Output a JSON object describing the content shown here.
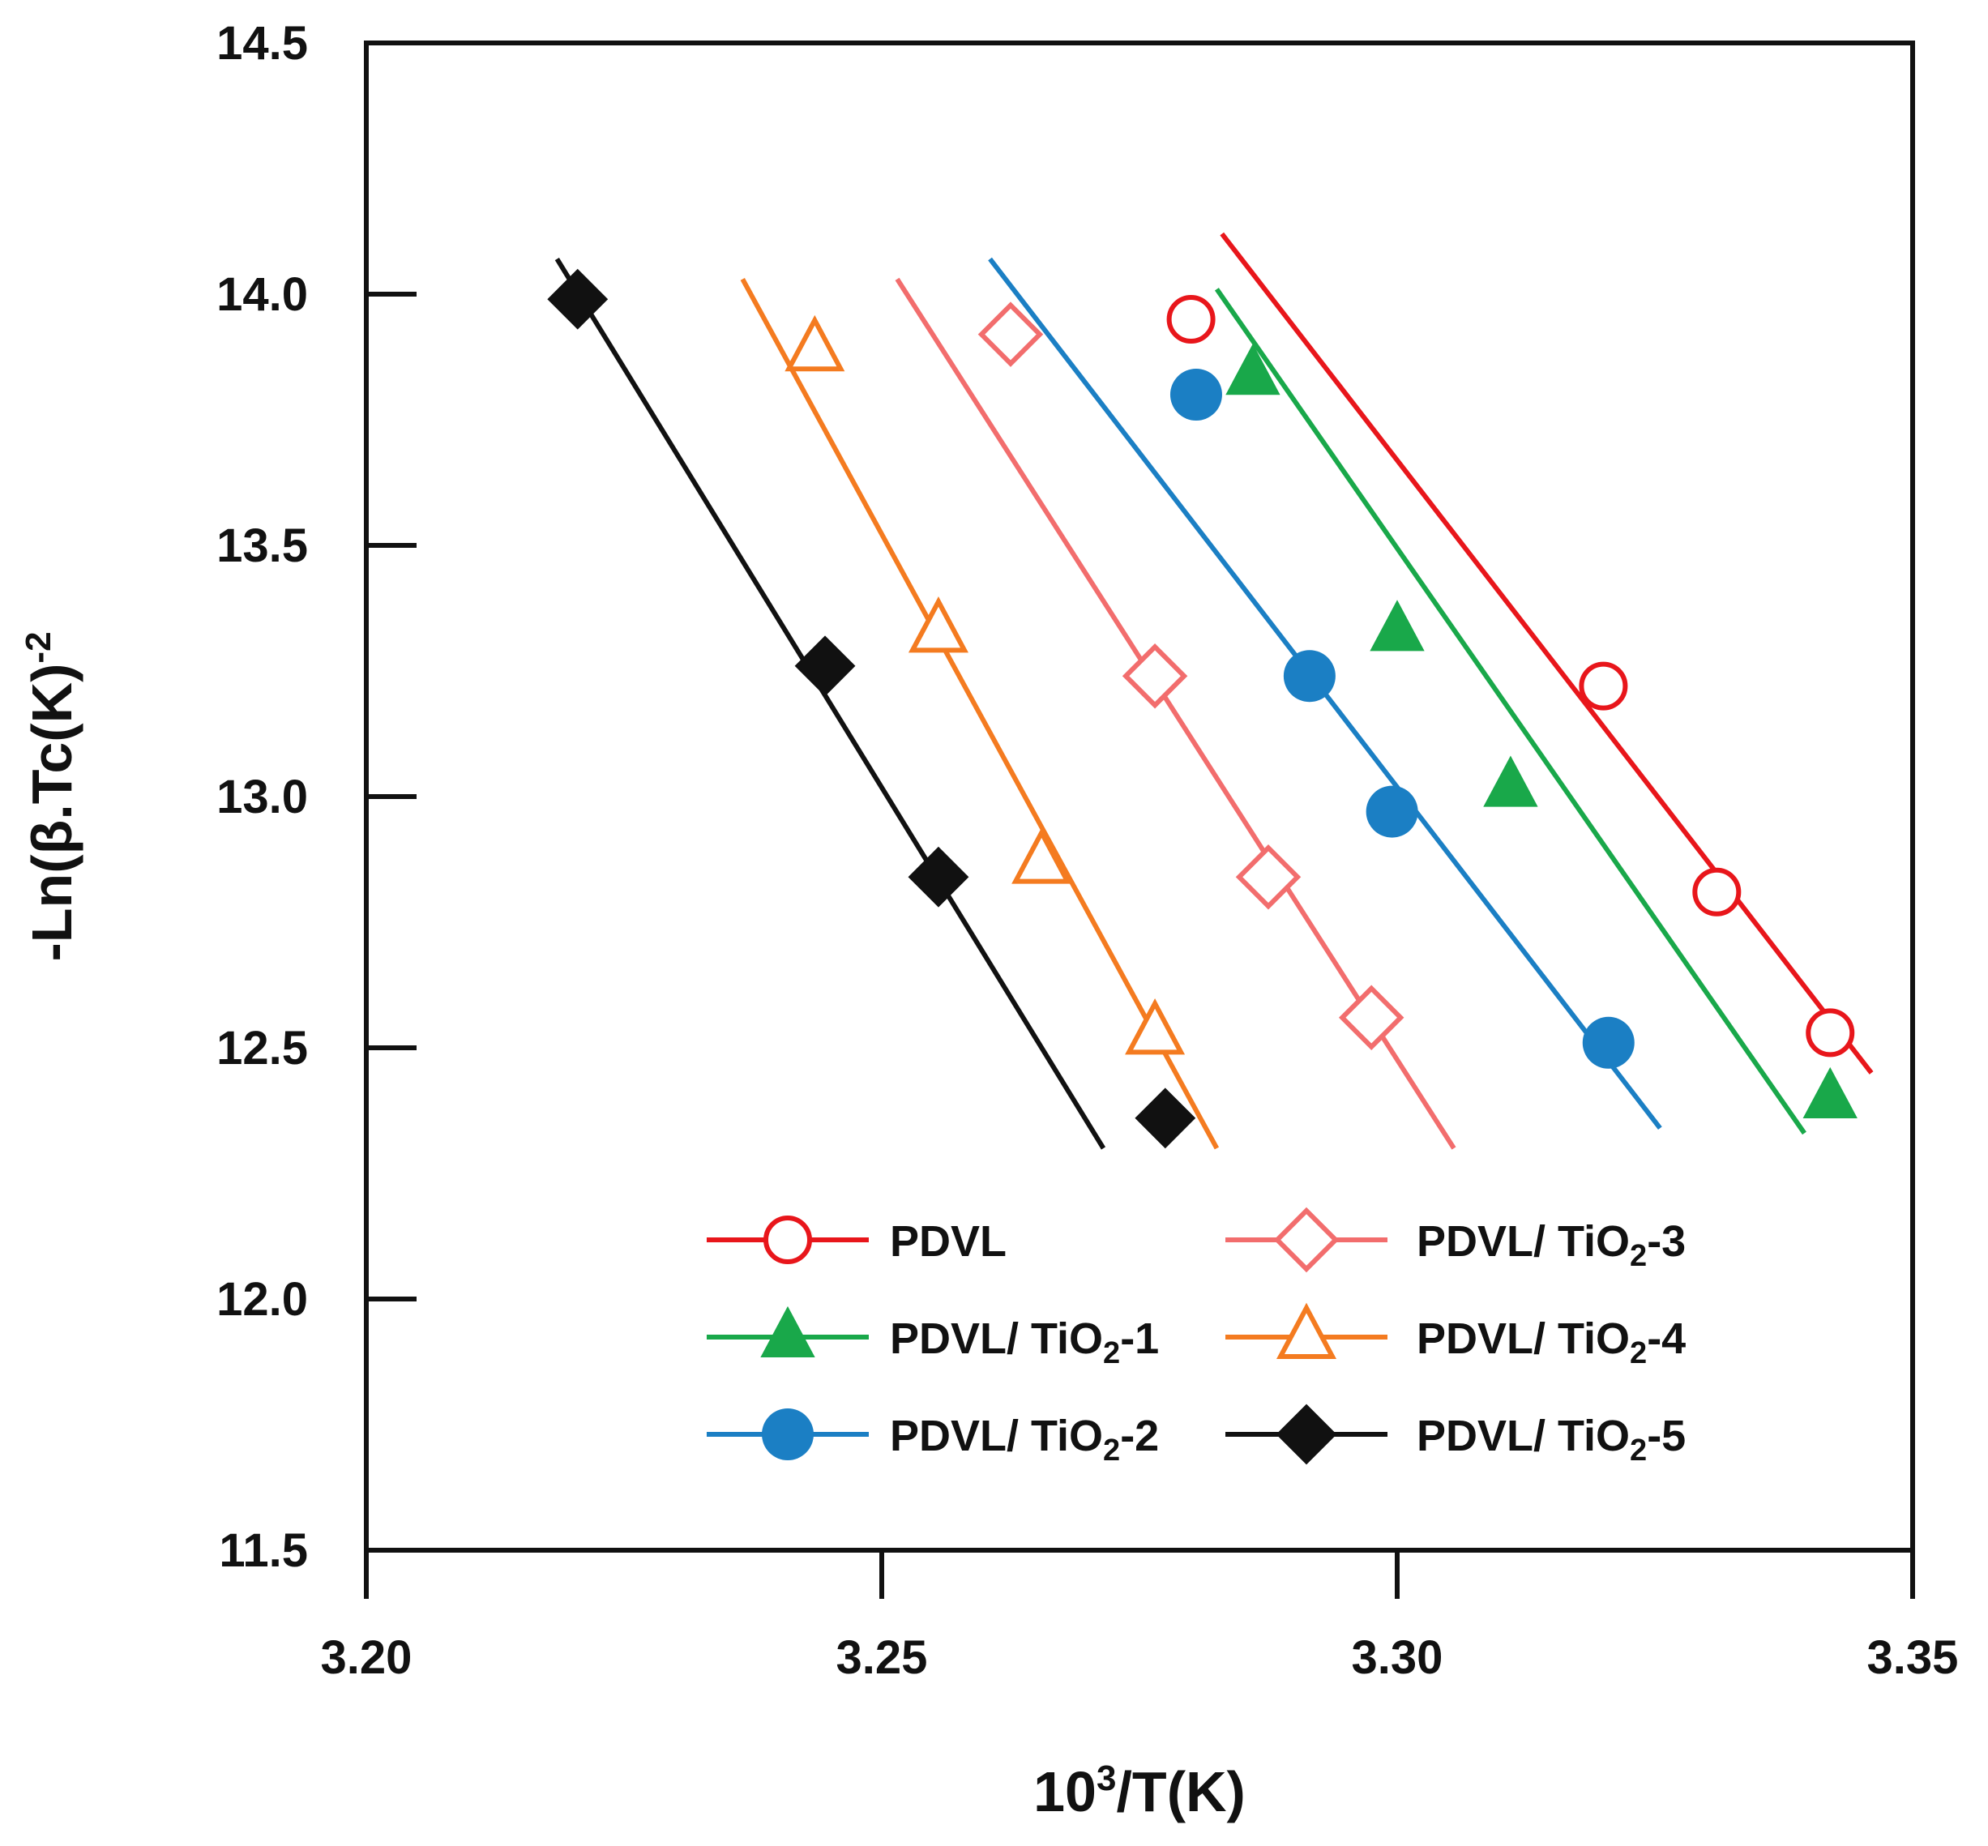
{
  "chart_data": {
    "type": "scatter",
    "title": "",
    "xlabel": "10³/T(K)",
    "xlabel_parts": {
      "base": "10",
      "sup": "3",
      "rest": "/T(K)"
    },
    "ylabel": "-Ln(β.Tc(K)⁻²",
    "ylabel_parts": {
      "main": "-Ln(β.Tc(K)",
      "sup": "-2"
    },
    "xlim": [
      3.2,
      3.35
    ],
    "ylim": [
      11.5,
      14.5
    ],
    "xticks": [
      "3.20",
      "3.25",
      "3.30",
      "3.35"
    ],
    "yticks": [
      "11.5",
      "12.0",
      "12.5",
      "13.0",
      "13.5",
      "14.0",
      "14.5"
    ],
    "grid": false,
    "legend_position": "bottom-right",
    "series": [
      {
        "name": "PDVL",
        "label_main": "PDVL",
        "label_sub": "",
        "label_tail": "",
        "color": "#e8161b",
        "marker": "circle-open",
        "x": [
          3.28,
          3.32,
          3.331,
          3.342
        ],
        "y": [
          13.95,
          13.22,
          12.81,
          12.53
        ],
        "fit": [
          [
            3.283,
            14.12
          ],
          [
            3.346,
            12.45
          ]
        ]
      },
      {
        "name": "PDVL/ TiO2-1",
        "label_main": "PDVL/ TiO",
        "label_sub": "2",
        "label_tail": "-1",
        "color": "#19a84a",
        "marker": "triangle-filled",
        "x": [
          3.286,
          3.3,
          3.311,
          3.342
        ],
        "y": [
          13.84,
          13.33,
          13.02,
          12.4
        ],
        "fit": [
          [
            3.2825,
            14.01
          ],
          [
            3.3395,
            12.33
          ]
        ]
      },
      {
        "name": "PDVL/ TiO2-2",
        "label_main": "PDVL/ TiO",
        "label_sub": "2",
        "label_tail": "-2",
        "color": "#1b7fc4",
        "marker": "circle-filled",
        "x": [
          3.2805,
          3.2915,
          3.2995,
          3.3205
        ],
        "y": [
          13.8,
          13.24,
          12.97,
          12.51
        ],
        "fit": [
          [
            3.2605,
            14.07
          ],
          [
            3.3255,
            12.34
          ]
        ]
      },
      {
        "name": "PDVL/ TiO2-3",
        "label_main": "PDVL/ TiO",
        "label_sub": "2",
        "label_tail": "-3",
        "color": "#f26d6d",
        "marker": "diamond-open",
        "x": [
          3.2625,
          3.2765,
          3.2875,
          3.2975
        ],
        "y": [
          13.92,
          13.24,
          12.84,
          12.56
        ],
        "fit": [
          [
            3.2515,
            14.03
          ],
          [
            3.3055,
            12.3
          ]
        ]
      },
      {
        "name": "PDVL/ TiO2-4",
        "label_main": "PDVL/ TiO",
        "label_sub": "2",
        "label_tail": "-4",
        "color": "#f47b20",
        "marker": "triangle-open",
        "x": [
          3.2435,
          3.2555,
          3.2655,
          3.2765
        ],
        "y": [
          13.89,
          13.33,
          12.87,
          12.53
        ],
        "fit": [
          [
            3.2365,
            14.03
          ],
          [
            3.2825,
            12.3
          ]
        ]
      },
      {
        "name": "PDVL/ TiO2-5",
        "label_main": "PDVL/ TiO",
        "label_sub": "2",
        "label_tail": "-5",
        "color": "#111111",
        "marker": "diamond-filled",
        "x": [
          3.2205,
          3.2445,
          3.2555,
          3.2775
        ],
        "y": [
          13.99,
          13.26,
          12.84,
          12.36
        ],
        "fit": [
          [
            3.2185,
            14.07
          ],
          [
            3.2715,
            12.3
          ]
        ]
      }
    ]
  }
}
